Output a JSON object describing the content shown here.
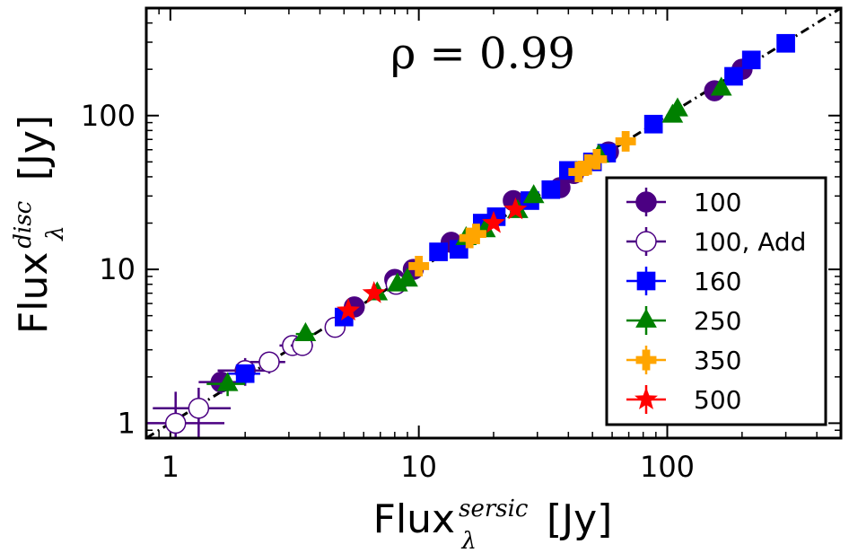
{
  "chart_data": {
    "type": "scatter",
    "title": "",
    "xlabel": "Flux",
    "xlabel_sub": "λ",
    "xlabel_sup": "sersic",
    "xlabel_unit": "[Jy]",
    "ylabel": "Flux",
    "ylabel_sub": "λ",
    "ylabel_sup": "disc",
    "ylabel_unit": "[Jy]",
    "xscale": "log",
    "yscale": "log",
    "xlim": [
      0.8,
      500
    ],
    "ylim": [
      0.8,
      500
    ],
    "xticks": [
      1,
      10,
      100
    ],
    "xtick_labels": [
      "1",
      "10",
      "100"
    ],
    "yticks": [
      1,
      10,
      100
    ],
    "ytick_labels": [
      "1",
      "10",
      "100"
    ],
    "annotation": "ρ = 0.99",
    "reference_line": "one-to-one (dash-dot)",
    "legend_position": "lower-right",
    "series": [
      {
        "name": "100",
        "marker": "circle",
        "color": "#4b0082",
        "filled": true,
        "x": [
          1.6,
          5.5,
          8,
          9.5,
          13.5,
          24,
          37,
          42,
          58,
          155,
          200
        ],
        "y": [
          1.85,
          5.7,
          8.6,
          10,
          15,
          28,
          34,
          42,
          58,
          145,
          200
        ],
        "xerr": [
          0.3,
          0.3,
          0.3,
          0.3,
          0.3,
          0.3,
          0.3,
          0.3,
          0.3,
          0.3,
          0.3
        ],
        "yerr": [
          0.3,
          0.3,
          0.3,
          0.3,
          0.3,
          0.3,
          0.3,
          0.3,
          0.3,
          0.3,
          0.3
        ]
      },
      {
        "name": "100, Add",
        "marker": "circle",
        "color": "#4b0082",
        "filled": false,
        "x": [
          1.05,
          1.3,
          2.0,
          2.5,
          3.1,
          3.4,
          4.6,
          8.1
        ],
        "y": [
          1.0,
          1.25,
          2.2,
          2.5,
          3.2,
          3.2,
          4.2,
          8.0
        ],
        "xerr": [
          0.6,
          0.45,
          0.45,
          0.4,
          0.35,
          0.35,
          0.3,
          0.3
        ],
        "yerr": [
          0.6,
          0.45,
          0.45,
          0.4,
          0.35,
          0.35,
          0.3,
          0.3
        ]
      },
      {
        "name": "160",
        "marker": "square",
        "color": "#0000ff",
        "x": [
          2.0,
          5.0,
          12.0,
          14.5,
          18.0,
          20.5,
          28.0,
          34.0,
          40.0,
          50.0,
          57.0,
          88.0,
          185.0,
          218.0,
          300.0
        ],
        "y": [
          2.1,
          4.9,
          13.0,
          13.5,
          20.0,
          22.0,
          28.0,
          33.0,
          44.0,
          50.0,
          57.0,
          88.0,
          180.0,
          230.0,
          295.0
        ],
        "xerr": [
          0.3,
          0.3,
          0.3,
          0.3,
          0.3,
          0.3,
          0.3,
          0.3,
          0.3,
          0.3,
          0.3,
          0.3,
          0.3,
          0.3,
          0.3
        ],
        "yerr": [
          0.3,
          0.3,
          0.3,
          0.3,
          0.3,
          0.3,
          0.3,
          0.3,
          0.3,
          0.3,
          0.3,
          0.3,
          0.3,
          0.3,
          0.3
        ]
      },
      {
        "name": "250",
        "marker": "triangle",
        "color": "#008000",
        "x": [
          1.7,
          3.5,
          6.8,
          8.2,
          9.0,
          15.5,
          18.5,
          25.0,
          29.0,
          53.0,
          105.0,
          110.0,
          165.0
        ],
        "y": [
          1.8,
          3.8,
          7.0,
          8.0,
          8.6,
          16.0,
          18.0,
          24.0,
          30.0,
          55.0,
          100.0,
          110.0,
          150.0
        ],
        "xerr": [
          0.3,
          0.3,
          0.3,
          0.3,
          0.3,
          0.3,
          0.3,
          0.3,
          0.3,
          0.3,
          0.3,
          0.3,
          0.3
        ],
        "yerr": [
          0.3,
          0.3,
          0.3,
          0.3,
          0.3,
          0.3,
          0.3,
          0.3,
          0.3,
          0.3,
          0.3,
          0.3,
          0.3
        ]
      },
      {
        "name": "350",
        "marker": "plus",
        "color": "#ffa500",
        "x": [
          10.0,
          16.0,
          17.0,
          44.0,
          48.0,
          52.0,
          68.0
        ],
        "y": [
          10.5,
          16.0,
          17.0,
          43.0,
          48.0,
          52.0,
          68.0
        ],
        "xerr": [
          0.3,
          0.3,
          0.3,
          0.3,
          0.3,
          0.3,
          0.3
        ],
        "yerr": [
          0.3,
          0.3,
          0.3,
          0.3,
          0.3,
          0.3,
          0.3
        ]
      },
      {
        "name": "500",
        "marker": "star",
        "color": "#ff0000",
        "x": [
          5.2,
          6.6,
          20.0,
          24.5
        ],
        "y": [
          5.4,
          7.0,
          20.0,
          24.5
        ],
        "xerr": [
          0.3,
          0.3,
          0.3,
          0.3
        ],
        "yerr": [
          0.3,
          0.3,
          0.3,
          0.3
        ]
      }
    ]
  }
}
